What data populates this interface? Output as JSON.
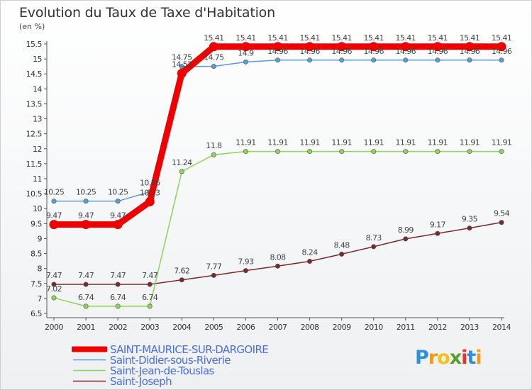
{
  "chart_data": {
    "type": "line",
    "title": "Evolution du Taux de Taxe d'Habitation",
    "ylabel": "(en %)",
    "xlabel": "",
    "x": [
      "2000",
      "2001",
      "2002",
      "2003",
      "2004",
      "2005",
      "2006",
      "2007",
      "2008",
      "2009",
      "2010",
      "2011",
      "2012",
      "2013",
      "2014"
    ],
    "ylim": [
      6.5,
      15.5
    ],
    "yticks": [
      "6.5",
      "7",
      "7.5",
      "8",
      "8.5",
      "9",
      "9.5",
      "10",
      "10.5",
      "11",
      "11.5",
      "12",
      "12.5",
      "13",
      "13.5",
      "14",
      "14.5",
      "15",
      "15.5"
    ],
    "grid": false,
    "series": [
      {
        "name": "SAINT-MAURICE-SUR-DARGOIRE",
        "color": "#ee0000",
        "weight": "thick",
        "values": [
          9.47,
          9.47,
          9.47,
          10.23,
          14.52,
          15.41,
          15.41,
          15.41,
          15.41,
          15.41,
          15.41,
          15.41,
          15.41,
          15.41,
          15.41
        ],
        "labels": [
          "9.47",
          "9.47",
          "9.47",
          "10.23",
          "14.52",
          "15.41",
          "15.41",
          "15.41",
          "15.41",
          "15.41",
          "15.41",
          "15.41",
          "15.41",
          "15.41",
          "15.41"
        ]
      },
      {
        "name": "Saint-Didier-sous-Riverie",
        "color": "#5b9bd5",
        "weight": "thin",
        "values": [
          10.25,
          10.25,
          10.25,
          10.56,
          14.75,
          14.75,
          14.9,
          14.96,
          14.96,
          14.96,
          14.96,
          14.96,
          14.96,
          14.96,
          14.96
        ],
        "labels": [
          "10.25",
          "10.25",
          "10.25",
          "10.56",
          "14.75",
          "14.75",
          "14.9",
          "14.96",
          "14.96",
          "14.96",
          "14.96",
          "14.96",
          "14.96",
          "14.96",
          "14.96"
        ]
      },
      {
        "name": "Saint-Jean-de-Touslas",
        "color": "#8ed45a",
        "weight": "thin",
        "values": [
          7.02,
          6.74,
          6.74,
          6.74,
          11.24,
          11.8,
          11.91,
          11.91,
          11.91,
          11.91,
          11.91,
          11.91,
          11.91,
          11.91,
          11.91
        ],
        "labels": [
          "7.02",
          "6.74",
          "6.74",
          "6.74",
          "11.24",
          "11.8",
          "11.91",
          "11.91",
          "11.91",
          "11.91",
          "11.91",
          "11.91",
          "11.91",
          "11.91",
          "11.91"
        ]
      },
      {
        "name": "Saint-Joseph",
        "color": "#7a2a2a",
        "weight": "thin",
        "values": [
          7.47,
          7.47,
          7.47,
          7.47,
          7.62,
          7.77,
          7.93,
          8.08,
          8.24,
          8.48,
          8.73,
          8.99,
          9.17,
          9.35,
          9.54
        ],
        "labels": [
          "7.47",
          "7.47",
          "7.47",
          "7.47",
          "7.62",
          "7.77",
          "7.93",
          "8.08",
          "8.24",
          "8.48",
          "8.73",
          "8.99",
          "9.17",
          "9.35",
          "9.54"
        ]
      }
    ]
  },
  "brand": {
    "letters": [
      "P",
      "r",
      "o",
      "x",
      "i",
      "t",
      "i"
    ],
    "colors": [
      "#2f8fd8",
      "#f29a1e",
      "#f2c21e",
      "#5aa02c",
      "#e8322d",
      "#2f8fd8",
      "#f29a1e"
    ]
  }
}
